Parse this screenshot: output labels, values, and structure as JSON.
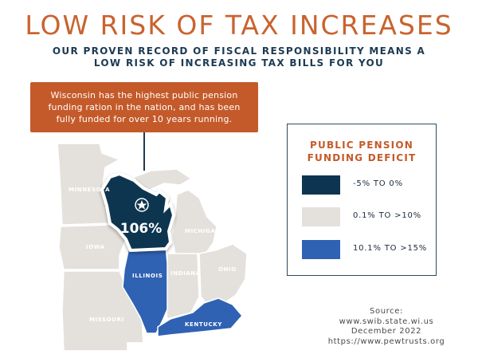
{
  "header": {
    "title": "LOW RISK OF TAX INCREASES",
    "subtitle_line1": "OUR PROVEN RECORD OF FISCAL RESPONSIBILITY MEANS A",
    "subtitle_line2": "LOW RISK OF INCREASING TAX BILLS FOR YOU"
  },
  "callout": {
    "line1": "Wisconsin has the highest public pension",
    "line2": "funding ration in the nation, and has been",
    "line3": "fully funded for over 10 years running."
  },
  "map": {
    "highlight_value": "106%",
    "states": [
      {
        "name": "MINNESOTA",
        "category": "0.1% TO >10%"
      },
      {
        "name": "WISCONSIN",
        "category": "-5% TO 0%"
      },
      {
        "name": "MICHIGAN",
        "category": "0.1% TO >10%"
      },
      {
        "name": "IOWA",
        "category": "0.1% TO >10%"
      },
      {
        "name": "ILLINOIS",
        "category": "10.1% TO >15%"
      },
      {
        "name": "INDIANA",
        "category": "0.1% TO >10%"
      },
      {
        "name": "OHIO",
        "category": "0.1% TO >10%"
      },
      {
        "name": "MISSOURI",
        "category": "0.1% TO >10%"
      },
      {
        "name": "KENTUCKY",
        "category": "10.1% TO >15%"
      }
    ]
  },
  "legend": {
    "title_line1": "PUBLIC PENSION",
    "title_line2": "FUNDING DEFICIT",
    "items": [
      {
        "label": "-5% TO 0%",
        "color": "#0d3450"
      },
      {
        "label": "0.1% TO >10%",
        "color": "#e4e1dc"
      },
      {
        "label": "10.1% TO >15%",
        "color": "#2f62b3"
      }
    ]
  },
  "source": {
    "line1": "Source:",
    "line2": "www.swib.state.wi.us",
    "line3": "December 2022",
    "line4": "https://www.pewtrusts.org"
  },
  "colors": {
    "title": "#c9632f",
    "navy": "#0d3450",
    "neutral": "#e4e1dc",
    "blue": "#2f62b3",
    "callout": "#c45a2a"
  }
}
